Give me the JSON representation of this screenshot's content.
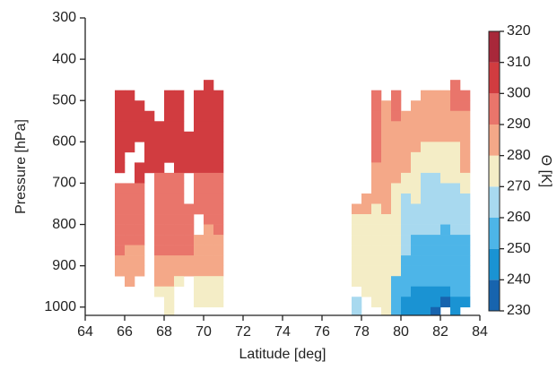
{
  "chart_data": {
    "type": "heatmap",
    "x_label": "Latitude [deg]",
    "y_label": "Pressure [hPa]",
    "xlim": [
      64,
      84
    ],
    "xticks": [
      64,
      66,
      68,
      70,
      72,
      74,
      76,
      78,
      80,
      82,
      84
    ],
    "ylim": [
      1020,
      300
    ],
    "yticks": [
      300,
      400,
      500,
      600,
      700,
      800,
      900,
      1000
    ],
    "x": [
      65.75,
      66.25,
      66.75,
      67.25,
      67.75,
      68.25,
      68.75,
      69.25,
      69.75,
      70.25,
      70.75,
      77.75,
      78.25,
      78.75,
      79.25,
      79.75,
      80.25,
      80.75,
      81.25,
      81.75,
      82.25,
      82.75,
      83.25
    ],
    "y": [
      462.5,
      487.5,
      512.5,
      537.5,
      562.5,
      587.5,
      612.5,
      637.5,
      662.5,
      687.5,
      712.5,
      737.5,
      762.5,
      787.5,
      812.5,
      837.5,
      862.5,
      887.5,
      912.5,
      937.5,
      962.5,
      987.5,
      1012.5
    ],
    "z": [
      [
        null,
        305,
        305,
        305,
        305,
        305,
        305,
        305,
        305,
        null,
        295,
        295,
        295,
        295,
        295,
        295,
        295,
        285,
        285,
        null,
        null,
        null,
        null
      ],
      [
        null,
        305,
        305,
        305,
        305,
        305,
        305,
        null,
        null,
        null,
        295,
        295,
        295,
        295,
        295,
        295,
        285,
        285,
        285,
        285,
        null,
        null,
        null
      ],
      [
        null,
        null,
        305,
        305,
        305,
        305,
        null,
        null,
        305,
        305,
        295,
        295,
        295,
        295,
        295,
        295,
        285,
        285,
        285,
        null,
        null,
        null,
        null
      ],
      [
        null,
        null,
        null,
        305,
        305,
        305,
        305,
        305,
        305,
        null,
        null,
        null,
        null,
        null,
        null,
        null,
        null,
        null,
        null,
        null,
        null,
        null,
        null
      ],
      [
        null,
        null,
        null,
        null,
        305,
        305,
        305,
        305,
        305,
        295,
        295,
        295,
        295,
        295,
        295,
        295,
        295,
        285,
        285,
        285,
        275,
        null,
        null
      ],
      [
        null,
        305,
        305,
        305,
        305,
        305,
        305,
        305,
        null,
        295,
        295,
        295,
        295,
        295,
        295,
        295,
        295,
        285,
        285,
        285,
        275,
        275,
        275
      ],
      [
        null,
        305,
        305,
        305,
        305,
        305,
        305,
        305,
        305,
        295,
        295,
        295,
        295,
        295,
        295,
        295,
        295,
        285,
        285,
        275,
        null,
        null,
        null
      ],
      [
        null,
        null,
        null,
        null,
        null,
        305,
        305,
        305,
        305,
        null,
        null,
        null,
        295,
        295,
        295,
        295,
        295,
        285,
        285,
        null,
        null,
        null,
        null
      ],
      [
        null,
        305,
        305,
        305,
        305,
        305,
        305,
        305,
        305,
        295,
        295,
        295,
        295,
        null,
        null,
        285,
        285,
        285,
        285,
        275,
        275,
        275,
        null
      ],
      [
        305,
        305,
        305,
        305,
        305,
        305,
        305,
        305,
        305,
        295,
        295,
        295,
        295,
        295,
        285,
        285,
        285,
        285,
        285,
        275,
        275,
        275,
        null
      ],
      [
        null,
        305,
        305,
        305,
        305,
        305,
        305,
        305,
        305,
        295,
        295,
        295,
        295,
        295,
        295,
        285,
        285,
        285,
        285,
        275,
        275,
        275,
        null
      ],
      [
        null,
        null,
        null,
        null,
        null,
        null,
        null,
        null,
        null,
        null,
        null,
        null,
        285,
        275,
        275,
        275,
        275,
        275,
        275,
        275,
        null,
        265,
        265
      ],
      [
        null,
        null,
        null,
        null,
        null,
        null,
        null,
        null,
        null,
        null,
        null,
        285,
        285,
        275,
        275,
        275,
        275,
        275,
        275,
        275,
        275,
        null,
        null
      ],
      [
        null,
        295,
        295,
        295,
        295,
        295,
        295,
        295,
        285,
        285,
        285,
        285,
        275,
        275,
        275,
        275,
        275,
        275,
        275,
        275,
        275,
        275,
        null
      ],
      [
        null,
        null,
        285,
        285,
        285,
        285,
        285,
        285,
        285,
        285,
        285,
        285,
        285,
        275,
        275,
        275,
        275,
        275,
        275,
        275,
        275,
        275,
        275
      ],
      [
        null,
        295,
        295,
        295,
        285,
        285,
        285,
        285,
        285,
        285,
        275,
        275,
        275,
        275,
        275,
        275,
        275,
        275,
        275,
        255,
        255,
        255,
        255
      ],
      [
        null,
        null,
        null,
        285,
        285,
        285,
        285,
        285,
        285,
        275,
        275,
        265,
        265,
        265,
        265,
        265,
        265,
        255,
        255,
        255,
        255,
        245,
        245
      ],
      [
        null,
        null,
        285,
        285,
        285,
        285,
        285,
        275,
        275,
        275,
        275,
        275,
        265,
        265,
        265,
        255,
        255,
        255,
        255,
        255,
        245,
        245,
        245
      ],
      [
        null,
        285,
        285,
        285,
        285,
        285,
        275,
        275,
        275,
        265,
        265,
        265,
        265,
        265,
        265,
        255,
        255,
        255,
        255,
        255,
        245,
        245,
        245
      ],
      [
        null,
        285,
        285,
        285,
        285,
        285,
        275,
        275,
        275,
        265,
        265,
        265,
        265,
        265,
        265,
        255,
        255,
        255,
        255,
        255,
        245,
        245,
        235
      ],
      [
        null,
        285,
        285,
        285,
        285,
        285,
        275,
        275,
        275,
        275,
        265,
        265,
        265,
        265,
        255,
        255,
        255,
        255,
        255,
        255,
        245,
        235,
        null
      ],
      [
        295,
        295,
        295,
        285,
        285,
        285,
        275,
        275,
        275,
        275,
        265,
        265,
        265,
        265,
        265,
        255,
        255,
        255,
        255,
        255,
        255,
        245,
        245
      ],
      [
        null,
        295,
        295,
        285,
        285,
        285,
        285,
        285,
        285,
        275,
        275,
        265,
        265,
        265,
        265,
        255,
        255,
        255,
        255,
        255,
        255,
        245,
        null
      ]
    ],
    "colorbar": {
      "label": "Θ [K]",
      "ticks": [
        230,
        240,
        250,
        260,
        270,
        280,
        290,
        300,
        310,
        320
      ],
      "colors": [
        "#1764ae",
        "#1a93d3",
        "#4db5e8",
        "#a8d9ef",
        "#f4edc6",
        "#f4a888",
        "#e9756b",
        "#d13c40",
        "#a8283a"
      ]
    }
  }
}
